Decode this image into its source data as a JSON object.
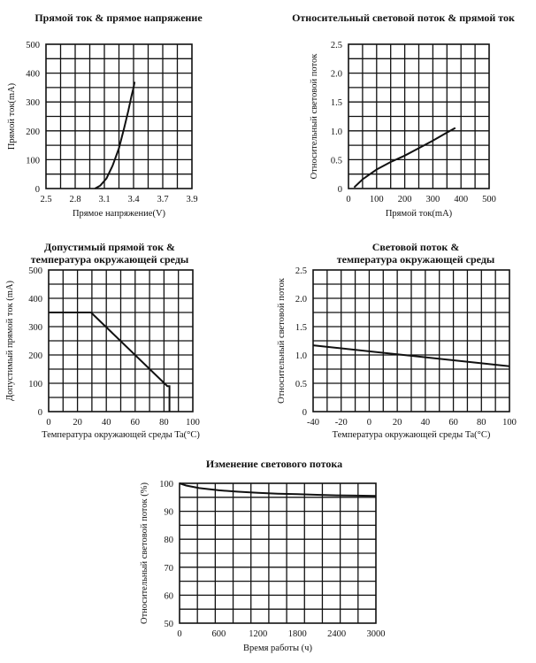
{
  "chart_data": [
    {
      "type": "line",
      "title": [
        "Прямой ток & прямое напряжение"
      ],
      "xlabel": "Прямое напряжение(V)",
      "ylabel": "Прямой ток(mA)",
      "x_ticks": [
        "2.5",
        "2.8",
        "3.1",
        "3.4",
        "3.7",
        "3.9"
      ],
      "y_ticks": [
        "0",
        "100",
        "200",
        "300",
        "400",
        "500"
      ],
      "xlim": [
        2.5,
        3.9
      ],
      "ylim": [
        0,
        500
      ],
      "grid": true,
      "series": [
        {
          "x": [
            2.97,
            3.02,
            3.08,
            3.14,
            3.2,
            3.25,
            3.29,
            3.32,
            3.34,
            3.35
          ],
          "y": [
            0,
            10,
            35,
            80,
            140,
            210,
            270,
            320,
            350,
            370
          ]
        }
      ]
    },
    {
      "type": "line",
      "title": [
        "Относительный световой поток & прямой ток"
      ],
      "xlabel": "Прямой ток(mA)",
      "ylabel": "Относительный световой поток",
      "x_ticks": [
        "0",
        "100",
        "200",
        "300",
        "400",
        "500"
      ],
      "y_ticks": [
        "0",
        "0.5",
        "1.0",
        "1.5",
        "2.0",
        "2.5"
      ],
      "xlim": [
        0,
        500
      ],
      "ylim": [
        0,
        2.5
      ],
      "grid": true,
      "series": [
        {
          "x": [
            20,
            50,
            100,
            150,
            200,
            250,
            300,
            350,
            380
          ],
          "y": [
            0.02,
            0.16,
            0.33,
            0.46,
            0.57,
            0.7,
            0.83,
            0.97,
            1.05
          ]
        }
      ]
    },
    {
      "type": "line",
      "title": [
        "Допустимый прямой ток &",
        "температура окружающей среды"
      ],
      "xlabel": "Температура окружающей среды Ta(°C)",
      "ylabel": "Допустимый прямой ток (mA)",
      "x_ticks": [
        "0",
        "20",
        "40",
        "60",
        "80",
        "100"
      ],
      "y_ticks": [
        "0",
        "100",
        "200",
        "300",
        "400",
        "500"
      ],
      "xlim": [
        -2,
        100
      ],
      "ylim": [
        0,
        500
      ],
      "grid": true,
      "series": [
        {
          "x": [
            -2,
            28,
            82,
            83.5,
            83.5
          ],
          "y": [
            350,
            350,
            90,
            90,
            0
          ]
        }
      ]
    },
    {
      "type": "line",
      "title": [
        "Световой поток &",
        "температура окружающей среды"
      ],
      "xlabel": "Температура окружающей среды Ta(°C)",
      "ylabel": "Относительный световой поток",
      "x_ticks": [
        "-40",
        "-20",
        "0",
        "20",
        "40",
        "60",
        "80",
        "100"
      ],
      "y_ticks": [
        "0",
        "0.5",
        "1.0",
        "1.5",
        "2.0",
        "2.5"
      ],
      "xlim": [
        -40,
        100
      ],
      "ylim": [
        0,
        2.5
      ],
      "grid": true,
      "series": [
        {
          "x": [
            -40,
            100
          ],
          "y": [
            1.17,
            0.8
          ]
        }
      ]
    },
    {
      "type": "line",
      "title": [
        "Изменение светового потока"
      ],
      "xlabel": "Время работы (ч)",
      "ylabel": "Относительный световой поток (%)",
      "x_ticks": [
        "0",
        "600",
        "1200",
        "1800",
        "2400",
        "3000"
      ],
      "y_ticks": [
        "50",
        "60",
        "70",
        "80",
        "90",
        "100"
      ],
      "xlim": [
        0,
        3000
      ],
      "ylim": [
        50,
        100
      ],
      "grid": true,
      "series": [
        {
          "x": [
            0,
            100,
            300,
            600,
            900,
            1200,
            1500,
            1800,
            2100,
            2400,
            2700,
            3000
          ],
          "y": [
            100,
            99.2,
            98.3,
            97.5,
            97.0,
            96.6,
            96.3,
            96.1,
            95.9,
            95.7,
            95.6,
            95.5
          ]
        }
      ]
    }
  ]
}
